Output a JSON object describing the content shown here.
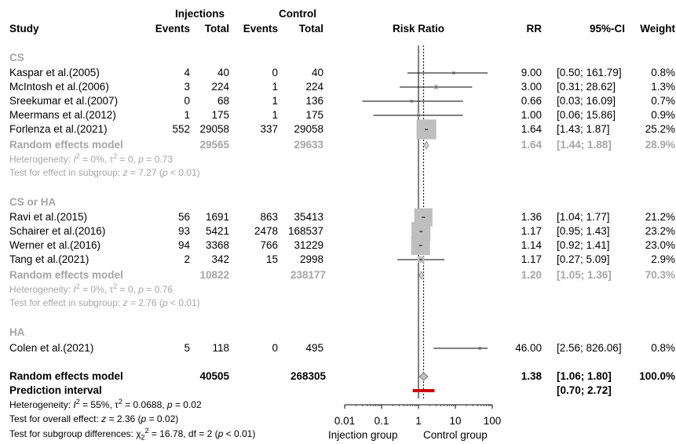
{
  "header": {
    "group_injections": "Injections",
    "group_control": "Control",
    "study": "Study",
    "events1": "Events",
    "total1": "Total",
    "events2": "Events",
    "total2": "Total",
    "plot_title": "Risk Ratio",
    "rr": "RR",
    "ci": "95%-CI",
    "weight": "Weight"
  },
  "subgroups": [
    {
      "name": "CS",
      "studies": [
        {
          "study": "Kaspar et al.(2005)",
          "e1": "4",
          "n1": "40",
          "e2": "0",
          "n2": "40",
          "rr_text": "9.00",
          "ci_text": "[0.50; 161.79]",
          "w": "0.8%"
        },
        {
          "study": "McIntosh et al.(2006)",
          "e1": "3",
          "n1": "224",
          "e2": "1",
          "n2": "224",
          "rr_text": "3.00",
          "ci_text": "[0.31; 28.62]",
          "w": "1.3%"
        },
        {
          "study": "Sreekumar et al.(2007)",
          "e1": "0",
          "n1": "68",
          "e2": "1",
          "n2": "136",
          "rr_text": "0.66",
          "ci_text": "[0.03; 16.09]",
          "w": "0.7%"
        },
        {
          "study": "Meermans et al.(2012)",
          "e1": "1",
          "n1": "175",
          "e2": "1",
          "n2": "175",
          "rr_text": "1.00",
          "ci_text": "[0.06; 15.86]",
          "w": "0.9%"
        },
        {
          "study": "Forlenza et al.(2021)",
          "e1": "552",
          "n1": "29058",
          "e2": "337",
          "n2": "29058",
          "rr_text": "1.64",
          "ci_text": "[1.43; 1.87]",
          "w": "25.2%"
        }
      ],
      "re_label": "Random effects model",
      "re_n1": "29565",
      "re_n2": "29633",
      "re_rr": "1.64",
      "re_ci": "[1.44; 1.88]",
      "re_w": "28.9%",
      "het": {
        "pre": "Heterogeneity: ",
        "i": "I",
        "i_sup": "2",
        "mid": " = 0%, τ",
        "tau_sup": "2",
        "post": " = 0, ",
        "p": "p",
        "pval": " = 0.73"
      },
      "test": {
        "pre": "Test for effect in subgroup: ",
        "z": "z",
        "mid": " = 7.27 (",
        "p": "p",
        "post": " < 0.01)"
      }
    },
    {
      "name": "CS or HA",
      "studies": [
        {
          "study": "Ravi et al.(2015)",
          "e1": "56",
          "n1": "1691",
          "e2": "863",
          "n2": "35413",
          "rr_text": "1.36",
          "ci_text": "[1.04; 1.77]",
          "w": "21.2%"
        },
        {
          "study": "Schairer et al.(2016)",
          "e1": "93",
          "n1": "5421",
          "e2": "2478",
          "n2": "168537",
          "rr_text": "1.17",
          "ci_text": "[0.95; 1.43]",
          "w": "23.2%"
        },
        {
          "study": "Werner et al.(2016)",
          "e1": "94",
          "n1": "3368",
          "e2": "766",
          "n2": "31229",
          "rr_text": "1.14",
          "ci_text": "[0.92; 1.41]",
          "w": "23.0%"
        },
        {
          "study": "Tang et al.(2021)",
          "e1": "2",
          "n1": "342",
          "e2": "15",
          "n2": "2998",
          "rr_text": "1.17",
          "ci_text": "[0.27; 5.09]",
          "w": "2.9%"
        }
      ],
      "re_label": "Random effects model",
      "re_n1": "10822",
      "re_n2": "238177",
      "re_rr": "1.20",
      "re_ci": "[1.05; 1.36]",
      "re_w": "70.3%",
      "het": {
        "pre": "Heterogeneity: ",
        "i": "I",
        "i_sup": "2",
        "mid": " = 0%, τ",
        "tau_sup": "2",
        "post": " = 0, ",
        "p": "p",
        "pval": " = 0.76"
      },
      "test": {
        "pre": "Test for effect in subgroup: ",
        "z": "z",
        "mid": " = 2.76 (",
        "p": "p",
        "post": " < 0.01)"
      }
    },
    {
      "name": "HA",
      "studies": [
        {
          "study": "Colen et al.(2021)",
          "e1": "5",
          "n1": "118",
          "e2": "0",
          "n2": "495",
          "rr_text": "46.00",
          "ci_text": "[2.56; 826.06]",
          "w": "0.8%"
        }
      ]
    }
  ],
  "overall": {
    "label": "Random effects model",
    "n1": "40505",
    "n2": "268305",
    "rr": "1.38",
    "ci": "[1.06; 1.80]",
    "w": "100.0%",
    "pi_label": "Prediction interval",
    "pi_ci": "[0.70; 2.72]",
    "het": {
      "pre": "Heterogeneity: ",
      "i": "I",
      "i_sup": "2",
      "mid": " = 55%, τ",
      "tau_sup": "2",
      "post": " = 0.0688, ",
      "p": "p",
      "pval": " = 0.02"
    },
    "test_overall": {
      "pre": "Test for overall effect: ",
      "z": "z",
      "mid": " = 2.36 (",
      "p": "p",
      "post": " = 0.02)"
    },
    "test_sub": {
      "pre": "Test for subgroup differences: ",
      "chi": "χ",
      "chi_sub": "2",
      "chi_sup": "2",
      "post": " = 16.78, df = 2 (",
      "p": "p",
      "post2": " < 0.01)"
    }
  },
  "x_axis": {
    "ticks": [
      "0.01",
      "0.1",
      "1",
      "10",
      "100"
    ],
    "left_label": "Injection group",
    "right_label": "Control group"
  },
  "chart_data": {
    "type": "forest",
    "x_scale": "log",
    "xlim": [
      0.01,
      100
    ],
    "reference_line": 1,
    "overall_dashed_line": 1.38,
    "studies": [
      {
        "name": "Kaspar et al.(2005)",
        "subgroup": "CS",
        "rr": 9.0,
        "lo": 0.5,
        "hi": 161.79,
        "weight": 0.8
      },
      {
        "name": "McIntosh et al.(2006)",
        "subgroup": "CS",
        "rr": 3.0,
        "lo": 0.31,
        "hi": 28.62,
        "weight": 1.3
      },
      {
        "name": "Sreekumar et al.(2007)",
        "subgroup": "CS",
        "rr": 0.66,
        "lo": 0.03,
        "hi": 16.09,
        "weight": 0.7
      },
      {
        "name": "Meermans et al.(2012)",
        "subgroup": "CS",
        "rr": 1.0,
        "lo": 0.06,
        "hi": 15.86,
        "weight": 0.9
      },
      {
        "name": "Forlenza et al.(2021)",
        "subgroup": "CS",
        "rr": 1.64,
        "lo": 1.43,
        "hi": 1.87,
        "weight": 25.2
      },
      {
        "name": "Ravi et al.(2015)",
        "subgroup": "CS or HA",
        "rr": 1.36,
        "lo": 1.04,
        "hi": 1.77,
        "weight": 21.2
      },
      {
        "name": "Schairer et al.(2016)",
        "subgroup": "CS or HA",
        "rr": 1.17,
        "lo": 0.95,
        "hi": 1.43,
        "weight": 23.2
      },
      {
        "name": "Werner et al.(2016)",
        "subgroup": "CS or HA",
        "rr": 1.14,
        "lo": 0.92,
        "hi": 1.41,
        "weight": 23.0
      },
      {
        "name": "Tang et al.(2021)",
        "subgroup": "CS or HA",
        "rr": 1.17,
        "lo": 0.27,
        "hi": 5.09,
        "weight": 2.9
      },
      {
        "name": "Colen et al.(2021)",
        "subgroup": "HA",
        "rr": 46.0,
        "lo": 2.56,
        "hi": 826.06,
        "weight": 0.8
      }
    ],
    "subgroup_summaries": [
      {
        "subgroup": "CS",
        "rr": 1.64,
        "lo": 1.44,
        "hi": 1.88,
        "weight": 28.9
      },
      {
        "subgroup": "CS or HA",
        "rr": 1.2,
        "lo": 1.05,
        "hi": 1.36,
        "weight": 70.3
      }
    ],
    "overall": {
      "rr": 1.38,
      "lo": 1.06,
      "hi": 1.8,
      "weight": 100.0
    },
    "prediction_interval": {
      "lo": 0.7,
      "hi": 2.72
    },
    "colors": {
      "square": "#bfbfbf",
      "diamond_subgroup": "#d9d9d9",
      "diamond_overall": "#bfbfbf",
      "prediction": "#cc0000",
      "line": "#000000",
      "subgroup_text": "#a6a6a6"
    }
  }
}
